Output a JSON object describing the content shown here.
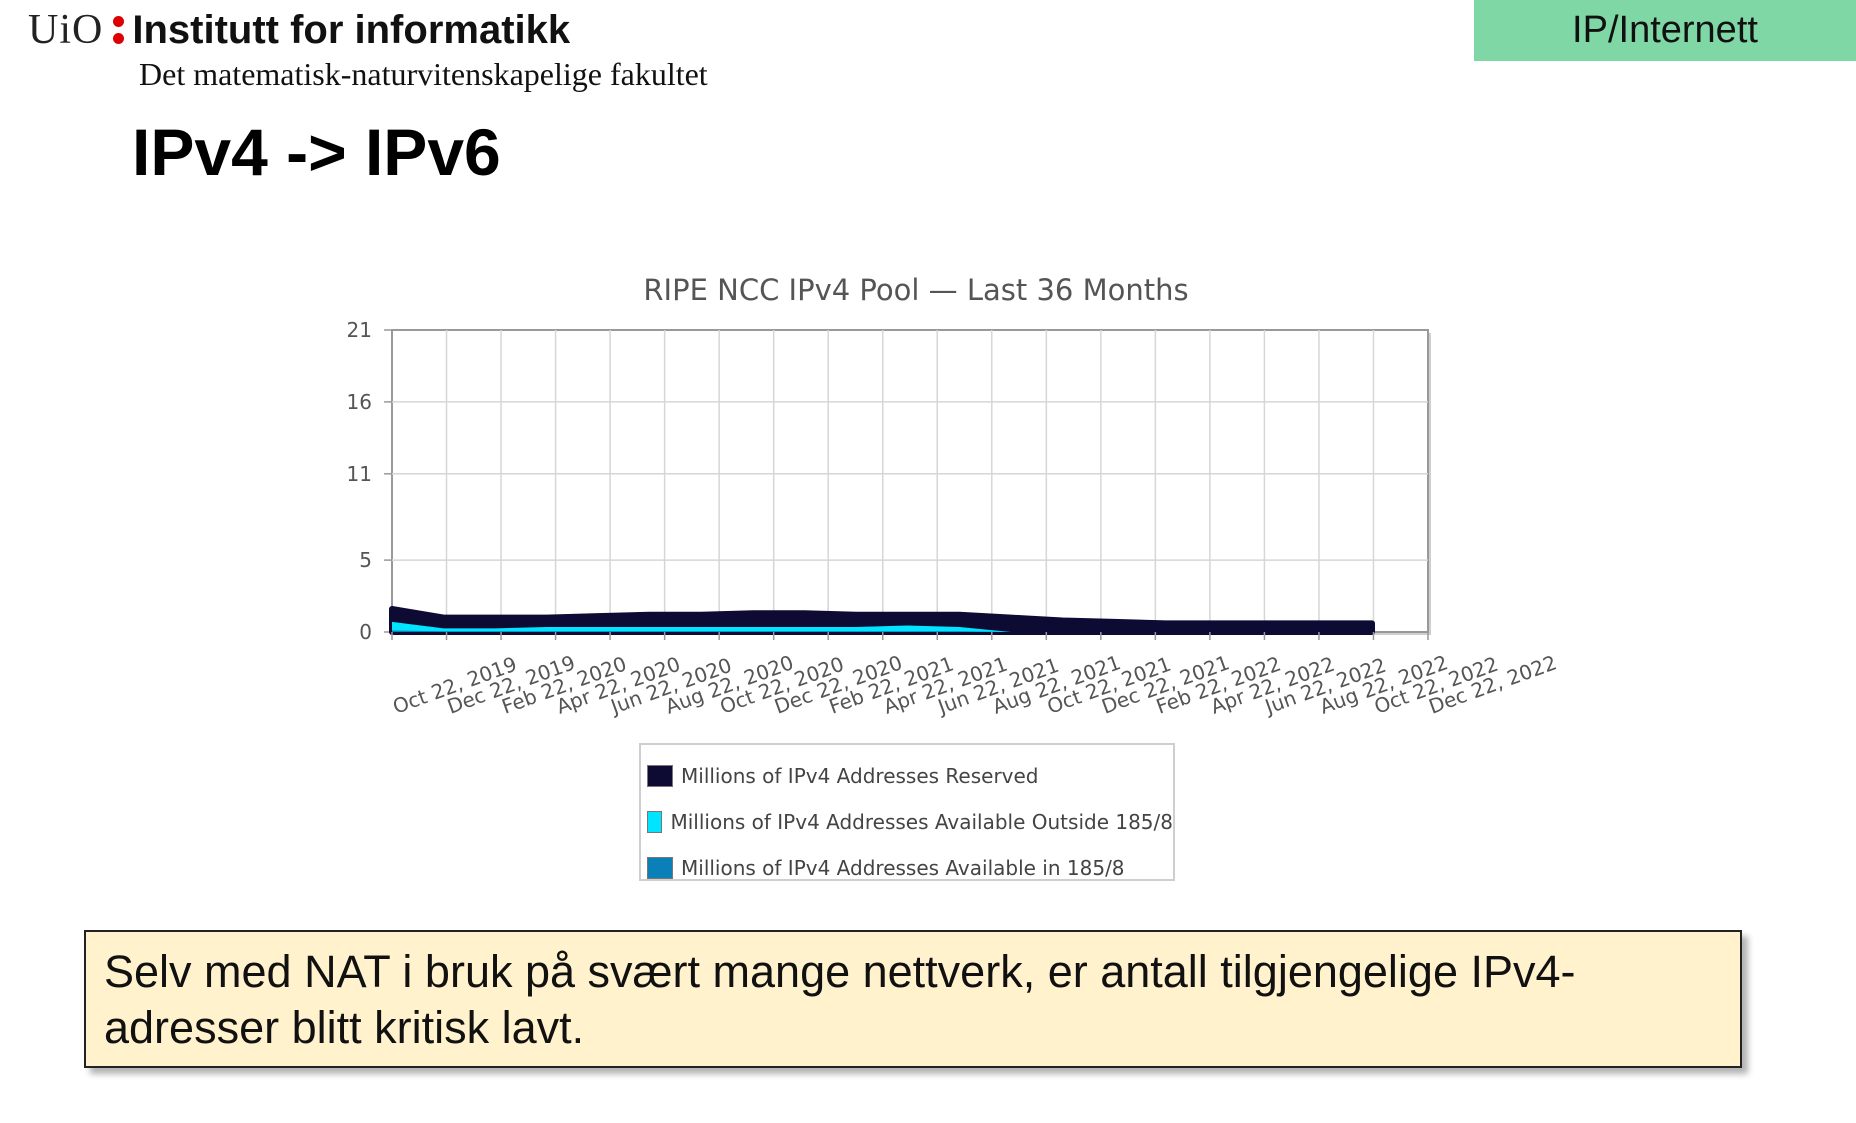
{
  "header": {
    "uio": "UiO",
    "institute": "Institutt for informatikk",
    "faculty": "Det matematisk-naturvitenskapelige fakultet",
    "section": "IP/Internett"
  },
  "slide": {
    "title": "IPv4 -> IPv6",
    "note": "Selv med NAT i bruk på svært mange nettverk, er antall tilgjengelige IPv4-adresser blitt kritisk lavt."
  },
  "colors": {
    "reserved": "#0d0a33",
    "available_outside": "#00e5ff",
    "available_in": "#0a7fb8",
    "section_tag": "#7fd7a6",
    "note_bg": "#fff2cc"
  },
  "chart_data": {
    "type": "area",
    "title": "RIPE NCC IPv4 Pool — Last 36 Months",
    "xlabel": "",
    "ylabel": "",
    "ylim": [
      0,
      21
    ],
    "yticks": [
      "0",
      "5",
      "11",
      "16",
      "21"
    ],
    "grid": true,
    "legend_position": "bottom",
    "x": [
      "Oct 22, 2019",
      "Dec 22, 2019",
      "Feb 22, 2020",
      "Apr 22, 2020",
      "Jun 22, 2020",
      "Aug 22, 2020",
      "Oct 22, 2020",
      "Dec 22, 2020",
      "Feb 22, 2021",
      "Apr 22, 2021",
      "Jun 22, 2021",
      "Aug 22, 2021",
      "Oct 22, 2021",
      "Dec 22, 2021",
      "Feb 22, 2022",
      "Apr 22, 2022",
      "Jun 22, 2022",
      "Aug 22, 2022",
      "Oct 22, 2022",
      "Dec 22, 2022"
    ],
    "series": [
      {
        "name": "Millions of IPv4 Addresses Reserved",
        "values": [
          1.6,
          1.0,
          1.0,
          1.0,
          1.1,
          1.2,
          1.2,
          1.3,
          1.3,
          1.2,
          1.2,
          1.2,
          1.0,
          0.8,
          0.7,
          0.6,
          0.6,
          0.6,
          0.6,
          0.6
        ]
      },
      {
        "name": "Millions of IPv4 Addresses Available Outside 185/8",
        "values": [
          0.6,
          0.2,
          0.2,
          0.3,
          0.3,
          0.3,
          0.3,
          0.3,
          0.3,
          0.3,
          0.4,
          0.3,
          0.0,
          0.0,
          0.0,
          0.0,
          0.0,
          0.0,
          0.0,
          0.0
        ]
      },
      {
        "name": "Millions of IPv4 Addresses Available in 185/8",
        "values": [
          0.1,
          0.05,
          0.05,
          0.05,
          0.05,
          0.05,
          0.05,
          0.05,
          0.05,
          0.05,
          0.05,
          0.05,
          0.0,
          0.0,
          0.0,
          0.0,
          0.0,
          0.0,
          0.0,
          0.0
        ]
      }
    ]
  }
}
